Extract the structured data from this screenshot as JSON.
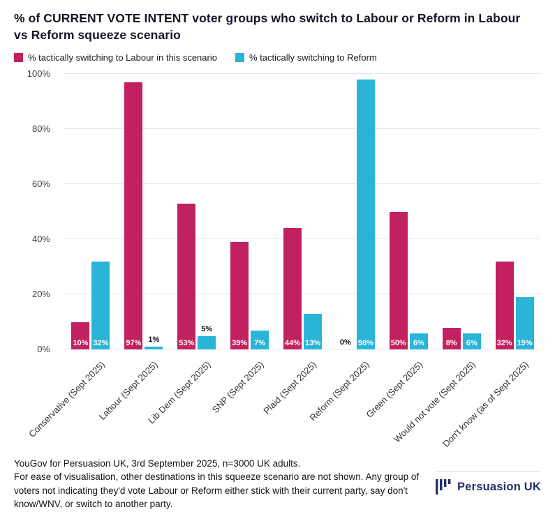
{
  "header": {
    "title": "% of CURRENT VOTE INTENT voter groups who switch to Labour or Reform in Labour vs Reform squeeze scenario"
  },
  "legend": [
    {
      "label": "% tactically switching to Labour in this scenario",
      "color": "#c2215f"
    },
    {
      "label": "% tactically switching to Reform",
      "color": "#2ab5d8"
    }
  ],
  "chart_data": {
    "type": "bar",
    "title": "% of CURRENT VOTE INTENT voter groups who switch to Labour or Reform in Labour vs Reform squeeze scenario",
    "categories": [
      "Conservative (Sept 2025)",
      "Labour (Sept 2025)",
      "Lib Dem (Sept 2025)",
      "SNP (Sept 2025)",
      "Plaid (Sept 2025)",
      "Reform (Sept 2025)",
      "Green (Sept 2025)",
      "Would not vote (Sept 2025)",
      "Don't know (as of Sept 2025)"
    ],
    "series": [
      {
        "name": "% tactically switching to Labour in this scenario",
        "color": "#c2215f",
        "values": [
          10,
          97,
          53,
          39,
          44,
          0,
          50,
          8,
          32
        ]
      },
      {
        "name": "% tactically switching to Reform",
        "color": "#2ab5d8",
        "values": [
          32,
          1,
          5,
          7,
          13,
          98,
          6,
          6,
          19
        ]
      }
    ],
    "ylabel": "",
    "xlabel": "",
    "ylim": [
      0,
      100
    ],
    "yticks": [
      0,
      20,
      40,
      60,
      80,
      100
    ],
    "ytick_suffix": "%",
    "grid": true,
    "legend_position": "top",
    "value_labels": "shown at base of bars; labels under 6% shown in black above bar"
  },
  "footer": {
    "source": "YouGov for Persuasion UK, 3rd September 2025, n=3000 UK adults.",
    "note": "For ease of visualisation, other destinations in this squeeze scenario are not shown. Any group of voters not indicating they'd vote Labour or Reform either stick with their current party, say don't know/WNV, or switch to another party.",
    "logo_text": "Persuasion UK",
    "logo_color": "#232f6d"
  }
}
